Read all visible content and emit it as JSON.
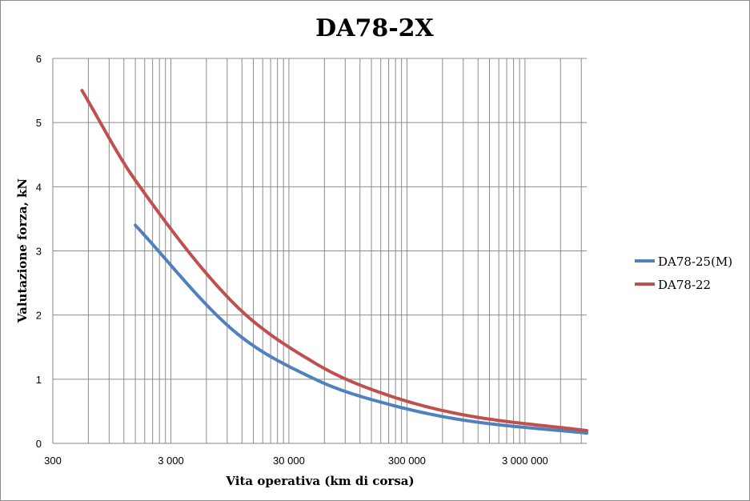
{
  "chart_data": {
    "type": "line",
    "title": "DA78-2X",
    "xlabel": "Vita operativa (km di corsa)",
    "ylabel": "Valutazione forza, kN",
    "x_scale": "log",
    "xlim": [
      300,
      10000000
    ],
    "ylim": [
      0,
      6
    ],
    "x_ticks": [
      {
        "value": 300,
        "label": "300"
      },
      {
        "value": 3000,
        "label": "3 000"
      },
      {
        "value": 30000,
        "label": "30 000"
      },
      {
        "value": 300000,
        "label": "300 000"
      },
      {
        "value": 3000000,
        "label": "3 000 000"
      }
    ],
    "y_ticks": [
      {
        "value": 0,
        "label": "0"
      },
      {
        "value": 1,
        "label": "1"
      },
      {
        "value": 2,
        "label": "2"
      },
      {
        "value": 3,
        "label": "3"
      },
      {
        "value": 4,
        "label": "4"
      },
      {
        "value": 5,
        "label": "5"
      },
      {
        "value": 6,
        "label": "6"
      }
    ],
    "grid": true,
    "legend_position": "right",
    "series": [
      {
        "name": "DA78-25(M)",
        "color": "#4F81BD",
        "points": [
          [
            1500,
            3.4
          ],
          [
            10000,
            1.77
          ],
          [
            50000,
            1.0
          ],
          [
            200000,
            0.62
          ],
          [
            1000000,
            0.35
          ],
          [
            10000000,
            0.16
          ]
        ]
      },
      {
        "name": "DA78-22",
        "color": "#C0504D",
        "points": [
          [
            530,
            5.5
          ],
          [
            1500,
            4.1
          ],
          [
            10000,
            2.2
          ],
          [
            50000,
            1.25
          ],
          [
            200000,
            0.76
          ],
          [
            1000000,
            0.43
          ],
          [
            10000000,
            0.2
          ]
        ]
      }
    ]
  }
}
